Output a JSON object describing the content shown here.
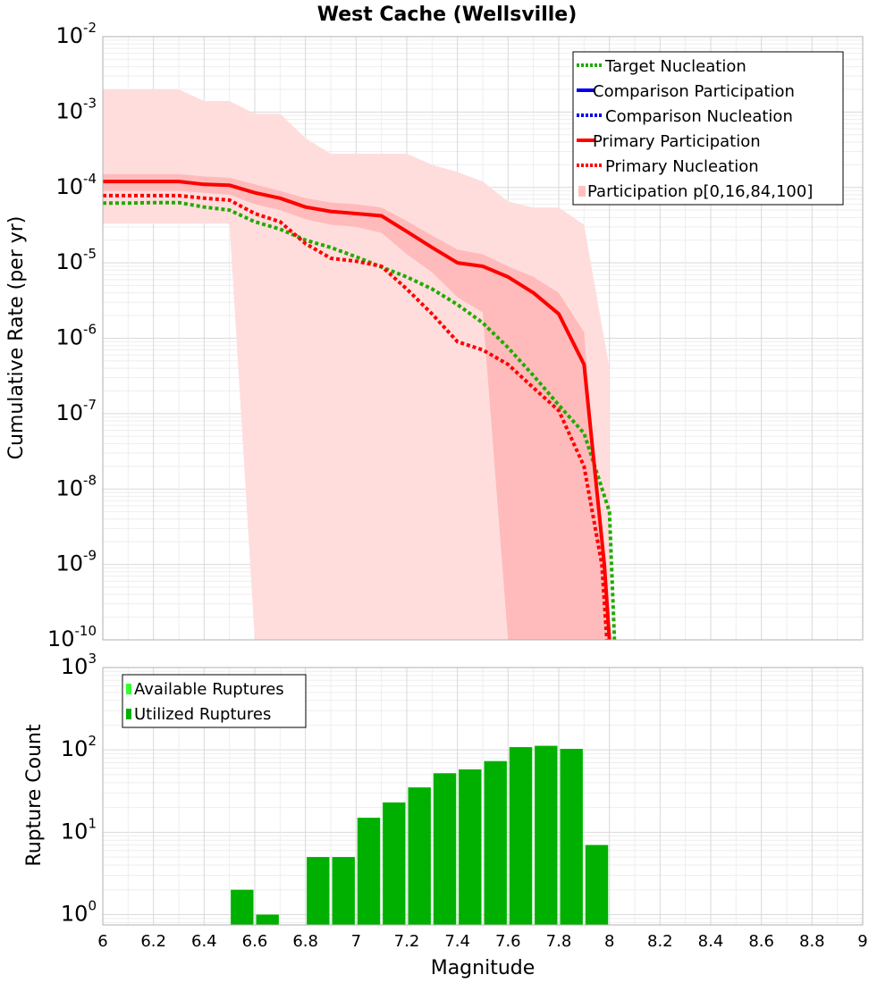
{
  "chart_data": [
    {
      "type": "line",
      "title": "West Cache (Wellsville)",
      "xlabel": "Magnitude",
      "ylabel": "Cumulative Rate (per yr)",
      "xlim": [
        6,
        9
      ],
      "ylim": [
        1e-10,
        0.01
      ],
      "yscale": "log",
      "grid": true,
      "legend_position": "top-right",
      "y_ticks": [
        {
          "base": "10",
          "exp": "-10"
        },
        {
          "base": "10",
          "exp": "-9"
        },
        {
          "base": "10",
          "exp": "-8"
        },
        {
          "base": "10",
          "exp": "-7"
        },
        {
          "base": "10",
          "exp": "-6"
        },
        {
          "base": "10",
          "exp": "-5"
        },
        {
          "base": "10",
          "exp": "-4"
        },
        {
          "base": "10",
          "exp": "-3"
        },
        {
          "base": "10",
          "exp": "-2"
        }
      ],
      "legend": [
        {
          "label": "Target Nucleation",
          "color": "#22aa00",
          "style": "dotted"
        },
        {
          "label": "Comparison Participation",
          "color": "#0000ee",
          "style": "solid"
        },
        {
          "label": "Comparison Nucleation",
          "color": "#0000ee",
          "style": "dotted"
        },
        {
          "label": "Primary Participation",
          "color": "#ff0000",
          "style": "solid"
        },
        {
          "label": "Primary Nucleation",
          "color": "#ff0000",
          "style": "dotted"
        },
        {
          "label": "Participation p[0,16,84,100]",
          "color": "#ffc0c0",
          "style": "fill"
        }
      ],
      "series": [
        {
          "name": "Target Nucleation",
          "color": "#22aa00",
          "x": [
            6.0,
            6.1,
            6.2,
            6.3,
            6.4,
            6.5,
            6.6,
            6.7,
            6.8,
            6.9,
            7.0,
            7.1,
            7.2,
            7.3,
            7.4,
            7.5,
            7.6,
            7.7,
            7.8,
            7.9,
            8.0,
            8.02
          ],
          "y": [
            6.2e-05,
            6.2e-05,
            6.3e-05,
            6.3e-05,
            5.5e-05,
            5e-05,
            3.5e-05,
            2.8e-05,
            2e-05,
            1.6e-05,
            1.2e-05,
            8.8e-06,
            6.5e-06,
            4.5e-06,
            2.8e-06,
            1.6e-06,
            7.5e-07,
            3.2e-07,
            1.3e-07,
            5.5e-08,
            5e-09,
            1e-10
          ]
        },
        {
          "name": "Primary Nucleation",
          "color": "#ff0000",
          "x": [
            6.0,
            6.1,
            6.2,
            6.3,
            6.4,
            6.5,
            6.6,
            6.7,
            6.8,
            6.9,
            7.0,
            7.1,
            7.2,
            7.3,
            7.4,
            7.5,
            7.6,
            7.7,
            7.8,
            7.9,
            7.97,
            7.99
          ],
          "y": [
            7.8e-05,
            7.8e-05,
            7.8e-05,
            7.8e-05,
            7.2e-05,
            6.8e-05,
            4.5e-05,
            3.5e-05,
            1.8e-05,
            1.15e-05,
            1.05e-05,
            9e-06,
            4.5e-06,
            2.1e-06,
            9e-07,
            7e-07,
            4.5e-07,
            2.2e-07,
            1.1e-07,
            2e-08,
            1e-09,
            1e-10
          ]
        },
        {
          "name": "Primary Participation",
          "color": "#ff0000",
          "x": [
            6.0,
            6.1,
            6.2,
            6.3,
            6.4,
            6.5,
            6.6,
            6.7,
            6.8,
            6.9,
            7.0,
            7.1,
            7.2,
            7.3,
            7.4,
            7.5,
            7.6,
            7.7,
            7.8,
            7.9,
            7.98,
            8.0
          ],
          "y": [
            0.00012,
            0.00012,
            0.00012,
            0.00012,
            0.00011,
            0.000107,
            8.5e-05,
            7.2e-05,
            5.5e-05,
            4.8e-05,
            4.5e-05,
            4.2e-05,
            2.6e-05,
            1.6e-05,
            1e-05,
            9e-06,
            6.5e-06,
            4e-06,
            2.1e-06,
            4.5e-07,
            1e-09,
            1e-10
          ]
        }
      ],
      "bands": [
        {
          "name": "Participation p[0,100]",
          "color": "#ffdddd",
          "x": [
            6.0,
            6.1,
            6.2,
            6.3,
            6.4,
            6.5,
            6.6,
            6.7,
            6.8,
            6.9,
            7.0,
            7.1,
            7.2,
            7.3,
            7.4,
            7.5,
            7.6,
            7.7,
            7.8,
            7.9,
            8.0
          ],
          "upper": [
            0.002,
            0.002,
            0.002,
            0.002,
            0.0014,
            0.0014,
            0.00095,
            0.00095,
            0.00045,
            0.00028,
            0.00028,
            0.00028,
            0.00028,
            0.0002,
            0.00016,
            0.00012,
            6.5e-05,
            5.4e-05,
            5.4e-05,
            3.2e-05,
            4e-07
          ],
          "lower": [
            3.3e-05,
            3.3e-05,
            3.3e-05,
            3.3e-05,
            3.3e-05,
            3.3e-05,
            1e-10,
            1e-10,
            1e-10,
            1e-10,
            1e-10,
            1e-10,
            1e-10,
            1e-10,
            1e-10,
            1e-10,
            1e-10,
            1e-10,
            1e-10,
            1e-10,
            1e-10
          ]
        },
        {
          "name": "Participation p[16,84]",
          "color": "#ffbbbb",
          "x": [
            6.0,
            6.1,
            6.2,
            6.3,
            6.4,
            6.5,
            6.6,
            6.7,
            6.8,
            6.9,
            7.0,
            7.1,
            7.2,
            7.3,
            7.4,
            7.5,
            7.6,
            7.7,
            7.8,
            7.9,
            8.0
          ],
          "upper": [
            0.00015,
            0.00015,
            0.00015,
            0.00015,
            0.00014,
            0.000135,
            0.00011,
            9e-05,
            7.2e-05,
            6.3e-05,
            6e-05,
            5.4e-05,
            3.6e-05,
            2.3e-05,
            1.5e-05,
            1.3e-05,
            9e-06,
            6.5e-06,
            4e-06,
            1.2e-06,
            1e-10
          ],
          "lower": [
            9e-05,
            9e-05,
            9e-05,
            9e-05,
            8.5e-05,
            8e-05,
            6e-05,
            5e-05,
            3.8e-05,
            3.2e-05,
            3e-05,
            2.5e-05,
            1.3e-05,
            7.5e-06,
            3.5e-06,
            2.2e-06,
            1e-10,
            1e-10,
            1e-10,
            1e-10,
            1e-10
          ]
        }
      ]
    },
    {
      "type": "bar",
      "title": "",
      "xlabel": "Magnitude",
      "ylabel": "Rupture Count",
      "xlim": [
        6,
        9
      ],
      "ylim": [
        0.75,
        1000
      ],
      "yscale": "log",
      "grid": true,
      "legend_position": "top-left",
      "x_ticks": [
        "6",
        "6.2",
        "6.4",
        "6.6",
        "6.8",
        "7",
        "7.2",
        "7.4",
        "7.6",
        "7.8",
        "8",
        "8.2",
        "8.4",
        "8.6",
        "8.8",
        "9"
      ],
      "y_ticks": [
        {
          "base": "10",
          "exp": "0"
        },
        {
          "base": "10",
          "exp": "1"
        },
        {
          "base": "10",
          "exp": "2"
        },
        {
          "base": "10",
          "exp": "3"
        }
      ],
      "legend": [
        {
          "label": "Available Ruptures",
          "color": "#33ff33"
        },
        {
          "label": "Utilized Ruptures",
          "color": "#00b000"
        }
      ],
      "bin_width": 0.1,
      "bins": [
        6.55,
        6.65,
        6.85,
        6.95,
        7.05,
        7.15,
        7.25,
        7.35,
        7.45,
        7.55,
        7.65,
        7.75,
        7.85,
        7.95
      ],
      "series": [
        {
          "name": "Available Ruptures",
          "color": "#33ff33",
          "values": [
            2,
            1,
            5,
            5,
            15,
            23,
            35,
            52,
            58,
            73,
            108,
            112,
            103,
            7
          ]
        },
        {
          "name": "Utilized Ruptures",
          "color": "#00b000",
          "values": [
            2,
            1,
            5,
            5,
            15,
            23,
            35,
            52,
            58,
            73,
            108,
            112,
            103,
            7
          ]
        }
      ]
    }
  ]
}
